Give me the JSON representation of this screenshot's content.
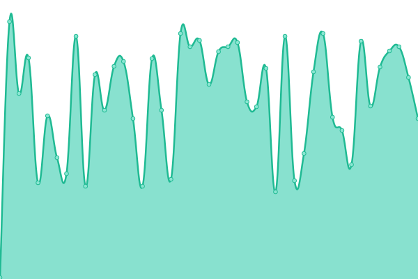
{
  "chart_data": {
    "type": "area",
    "categories": [
      null,
      null,
      null,
      null,
      null,
      null,
      null,
      null,
      null,
      null,
      null,
      null,
      null,
      null,
      null,
      null,
      null,
      null,
      null,
      null,
      null,
      null,
      null,
      null,
      null,
      null,
      null,
      null,
      null,
      null,
      null,
      null,
      null,
      null,
      null,
      null,
      null,
      null,
      null,
      null,
      null,
      null,
      null,
      null,
      null
    ],
    "values": [
      2,
      369,
      266,
      317,
      138,
      234,
      174,
      151,
      348,
      133,
      293,
      242,
      305,
      312,
      230,
      133,
      316,
      242,
      143,
      352,
      333,
      342,
      279,
      326,
      333,
      339,
      254,
      247,
      302,
      125,
      348,
      141,
      180,
      297,
      352,
      232,
      213,
      164,
      341,
      248,
      304,
      327,
      333,
      289,
      230
    ],
    "color": "#1fba93",
    "fill": "#88e1cf",
    "marker_fill": "#8ae6d2",
    "ylim": [
      0,
      400
    ]
  }
}
